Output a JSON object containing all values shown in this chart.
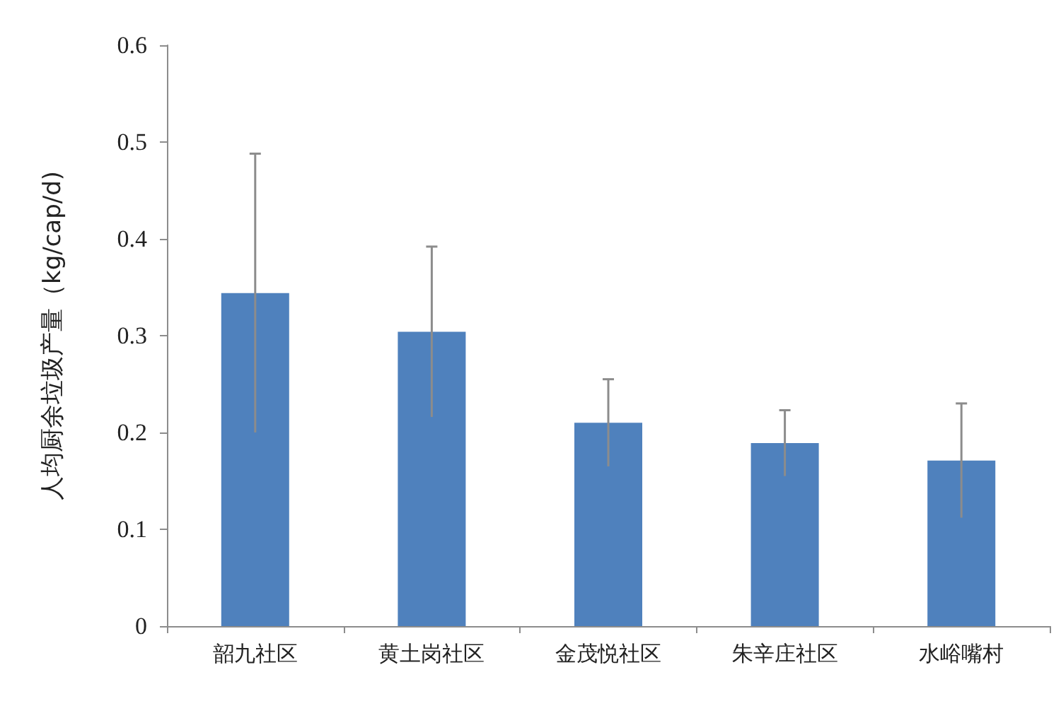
{
  "chart_data": {
    "type": "bar",
    "ylabel": "人均厨余垃圾产量（kg/cap/d)",
    "categories": [
      "韶九社区",
      "黄土岗社区",
      "金茂悦社区",
      "朱辛庄社区",
      "水峪嘴村"
    ],
    "values": [
      0.344,
      0.304,
      0.21,
      0.189,
      0.171
    ],
    "errors": [
      0.144,
      0.088,
      0.045,
      0.034,
      0.059
    ],
    "color": "#4f81bd",
    "ylim": [
      0,
      0.6
    ],
    "yticks": [
      0,
      0.1,
      0.2,
      0.3,
      0.4,
      0.5,
      0.6
    ],
    "grid": false
  }
}
